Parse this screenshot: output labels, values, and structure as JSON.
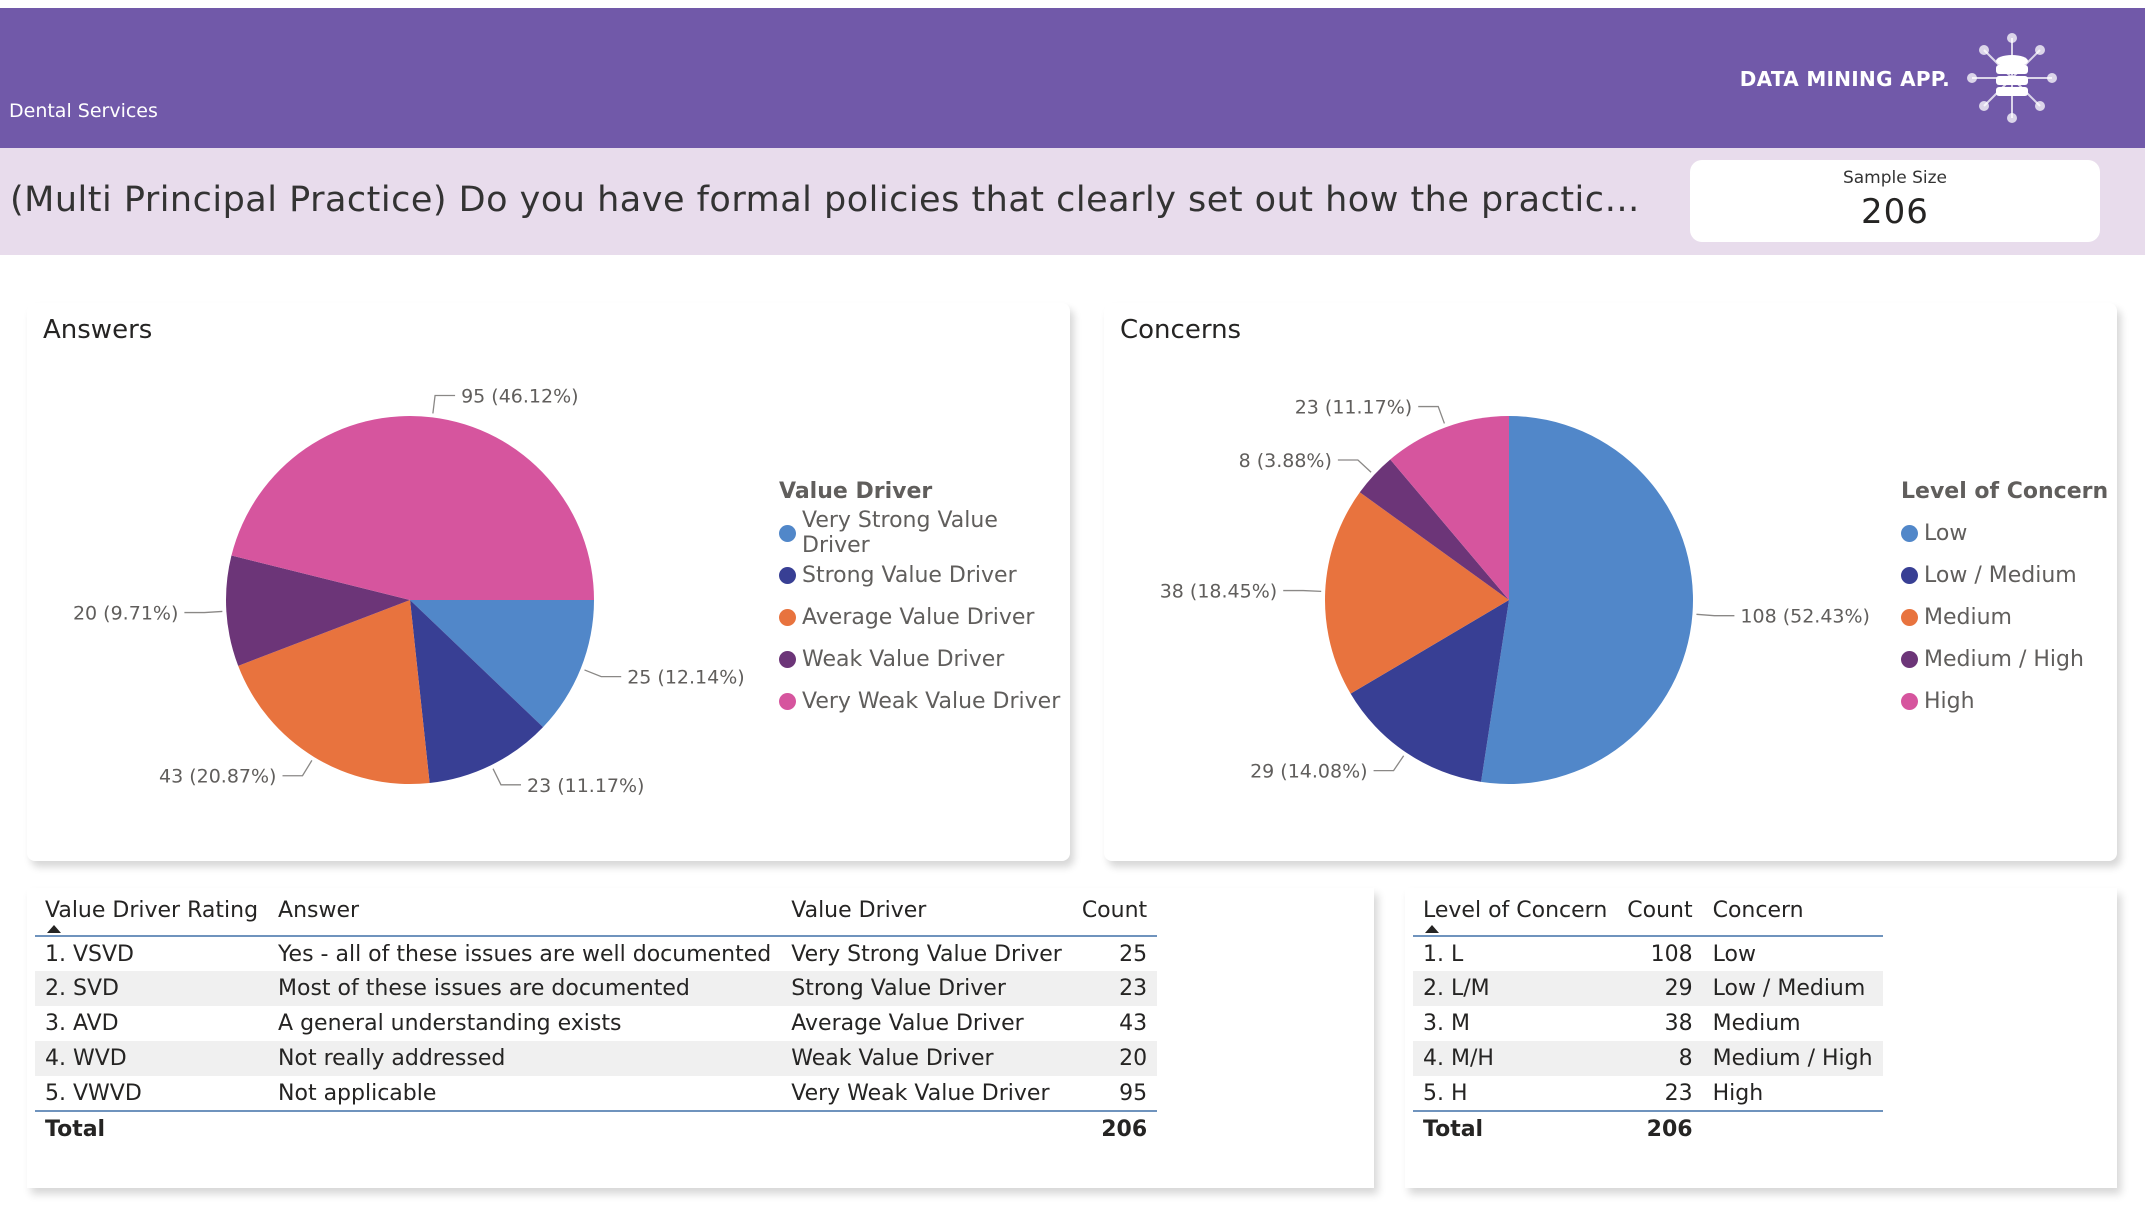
{
  "header": {
    "section_name": "Dental Services",
    "brand": "DATA MINING APP.",
    "logo_icon": "database-network-icon"
  },
  "question": {
    "text": "(Multi Principal Practice) Do you have formal policies that clearly set out how the practice will be man..."
  },
  "sample_size": {
    "label": "Sample Size",
    "value": "206"
  },
  "answers_chart": {
    "title": "Answers",
    "legend_title": "Value Driver",
    "chart_data": {
      "type": "pie",
      "title": "Answers",
      "categories": [
        "Very Strong Value Driver",
        "Strong Value Driver",
        "Average Value Driver",
        "Weak Value Driver",
        "Very Weak Value Driver"
      ],
      "values": [
        25,
        23,
        43,
        20,
        95
      ],
      "labels": [
        "25 (12.14%)",
        "23 (11.17%)",
        "43 (20.87%)",
        "20 (9.71%)",
        "95 (46.12%)"
      ],
      "colors": [
        "#5187c9",
        "#383f94",
        "#e8733e",
        "#6c3578",
        "#d6559e"
      ]
    }
  },
  "concerns_chart": {
    "title": "Concerns",
    "legend_title": "Level of Concern",
    "chart_data": {
      "type": "pie",
      "title": "Concerns",
      "categories": [
        "Low",
        "Low / Medium",
        "Medium",
        "Medium / High",
        "High"
      ],
      "values": [
        108,
        29,
        38,
        8,
        23
      ],
      "labels": [
        "108 (52.43%)",
        "29 (14.08%)",
        "38 (18.45%)",
        "8 (3.88%)",
        "23 (11.17%)"
      ],
      "colors": [
        "#5187c9",
        "#383f94",
        "#e8733e",
        "#6c3578",
        "#d6559e"
      ]
    }
  },
  "value_driver_table": {
    "headers": [
      "Value Driver Rating",
      "Answer",
      "Value Driver",
      "Count"
    ],
    "rows": [
      [
        "1. VSVD",
        "Yes - all of these issues are well documented",
        "Very Strong Value Driver",
        "25"
      ],
      [
        "2. SVD",
        "Most of these issues are documented",
        "Strong Value Driver",
        "23"
      ],
      [
        "3. AVD",
        "A general understanding exists",
        "Average Value Driver",
        "43"
      ],
      [
        "4. WVD",
        "Not really addressed",
        "Weak Value Driver",
        "20"
      ],
      [
        "5. VWVD",
        "Not applicable",
        "Very Weak Value Driver",
        "95"
      ]
    ],
    "total_label": "Total",
    "total_value": "206"
  },
  "concern_table": {
    "headers": [
      "Level of Concern",
      "Count",
      "Concern"
    ],
    "rows": [
      [
        "1. L",
        "108",
        "Low"
      ],
      [
        "2. L/M",
        "29",
        "Low / Medium"
      ],
      [
        "3. M",
        "38",
        "Medium"
      ],
      [
        "4. M/H",
        "8",
        "Medium / High"
      ],
      [
        "5. H",
        "23",
        "High"
      ]
    ],
    "total_label": "Total",
    "total_value": "206"
  }
}
